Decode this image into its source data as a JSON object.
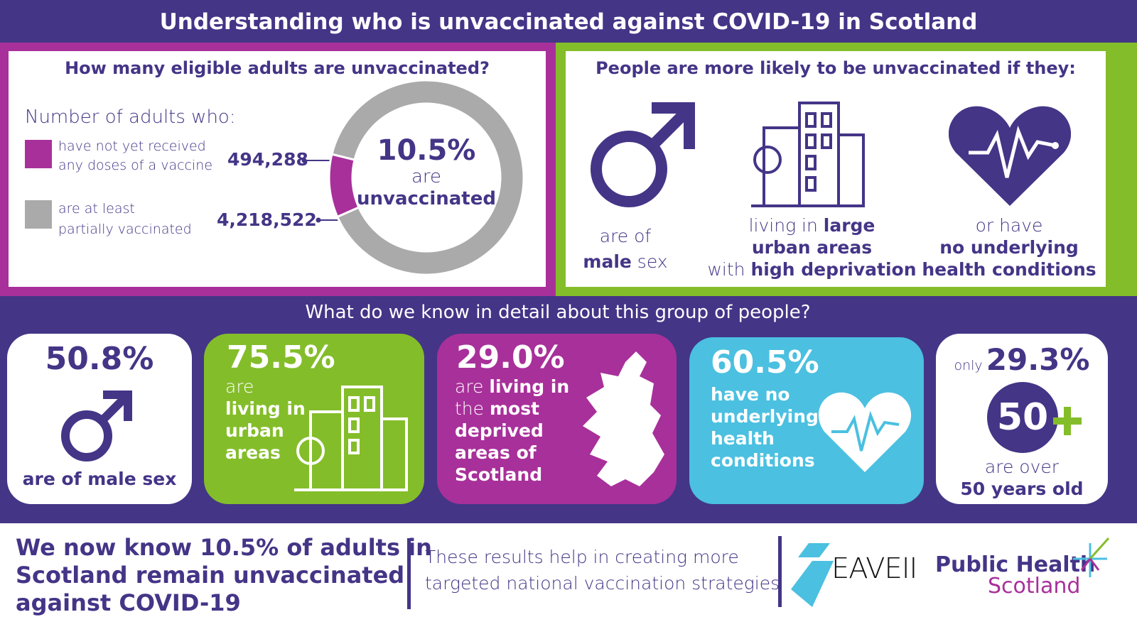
{
  "title": "Understanding who is unvaccinated against COVID-19 in Scotland",
  "colors": {
    "navy": "#443587",
    "magenta": "#a8309a",
    "green": "#84bd2a",
    "cyan": "#4bc0e0",
    "gray": "#aaaaaa"
  },
  "left_panel": {
    "heading": "How many eligible adults are unvaccinated?",
    "legend_title": "Number of adults who:",
    "legend": [
      {
        "line1": "have not yet received",
        "line2": "any doses of a vaccine",
        "value": "494,288",
        "color": "#a8309a"
      },
      {
        "line1": "are at least",
        "line2": "partially vaccinated",
        "value": "4,218,522",
        "color": "#aaaaaa"
      }
    ],
    "center_pct": "10.5%",
    "center_l1": "are",
    "center_l2": "unvaccinated"
  },
  "chart_data": {
    "type": "pie",
    "donut": true,
    "categories": [
      "have not yet received any doses of a vaccine",
      "are at least partially vaccinated"
    ],
    "values": [
      494288,
      4218522
    ],
    "colors": [
      "#a8309a",
      "#aaaaaa"
    ]
  },
  "right_panel": {
    "heading": "People are more likely to be unvaccinated if they:",
    "items": [
      {
        "icon": "male-symbol-icon",
        "a": "are of",
        "b": "male",
        "c": " sex"
      },
      {
        "icon": "city-buildings-icon",
        "a": "living in ",
        "b": "large",
        "c": "urban areas",
        "d": "with ",
        "e": "high deprivation"
      },
      {
        "icon": "heartbeat-icon",
        "a": "or have",
        "b": "no underlying",
        "c": "health conditions"
      }
    ]
  },
  "detail_heading": "What do we know in detail about this group of people?",
  "cards": [
    {
      "pct": "50.8%",
      "text": "are of male sex"
    },
    {
      "pct": "75.5%",
      "l1": "are",
      "l2": "living in",
      "l3": "urban",
      "l4": "areas"
    },
    {
      "pct": "29.0%",
      "l1a": "are ",
      "l1b": "living in",
      "l2a": "the ",
      "l2b": "most",
      "l3": "deprived",
      "l4": "areas of",
      "l5": "Scotland"
    },
    {
      "pct": "60.5%",
      "l1": "have no",
      "l2": "underlying",
      "l3": "health",
      "l4": "conditions"
    },
    {
      "pre": "only",
      "pct": "29.3%",
      "badge": "50",
      "l1": "are over",
      "l2": "50 years old"
    }
  ],
  "footer": {
    "headline": [
      "We now know 10.5% of adults in",
      "Scotland remain unvaccinated",
      "against COVID-19"
    ],
    "sub": [
      "These results help in creating more",
      "targeted national vaccination strategies"
    ],
    "logo1": "EAVEII",
    "logo2a": "Public Health",
    "logo2b": "Scotland"
  }
}
